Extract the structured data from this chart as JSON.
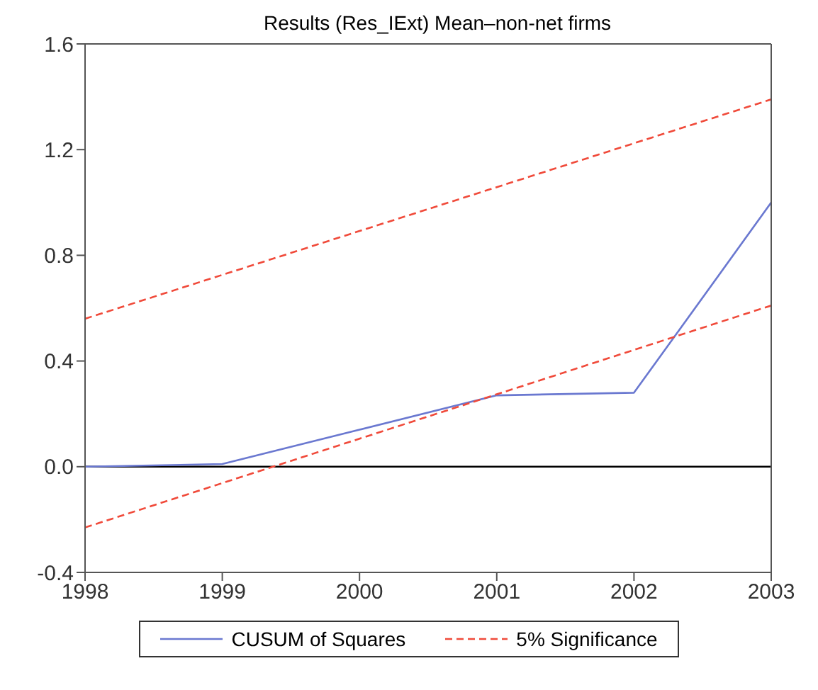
{
  "chart_data": {
    "type": "line",
    "title": "Results (Res_IExt) Mean–non-net firms",
    "xlim": [
      1998,
      2003
    ],
    "xticks": [
      1998,
      1999,
      2000,
      2001,
      2002,
      2003
    ],
    "ylim": [
      -0.4,
      1.6
    ],
    "yticks": [
      -0.4,
      {
        "value": 0,
        "label": "0.0"
      },
      0.4,
      0.8,
      1.2,
      1.6
    ],
    "legend": "bottom",
    "marker": "none",
    "series": [
      {
        "name": "CUSUM of Squares",
        "color": "#6a78d0",
        "line_style": "solid",
        "x": [
          1998,
          1999,
          2000,
          2001,
          2002,
          2003
        ],
        "values": [
          0,
          0.01,
          0.14,
          0.27,
          0.28,
          1.0
        ]
      },
      {
        "name": "5% Significance",
        "color": "#f04a3a",
        "line_style": "dashed",
        "x": [
          1998,
          2003
        ],
        "values": [
          0.56,
          1.39
        ]
      },
      {
        "color": "#f04a3a",
        "line_style": "dashed",
        "x": [
          1998,
          2003
        ],
        "values": [
          -0.23,
          0.61
        ]
      }
    ],
    "ref_lines": [
      {
        "axis": "y",
        "value": 0,
        "color": "#000000",
        "line_style": "solid"
      }
    ]
  }
}
